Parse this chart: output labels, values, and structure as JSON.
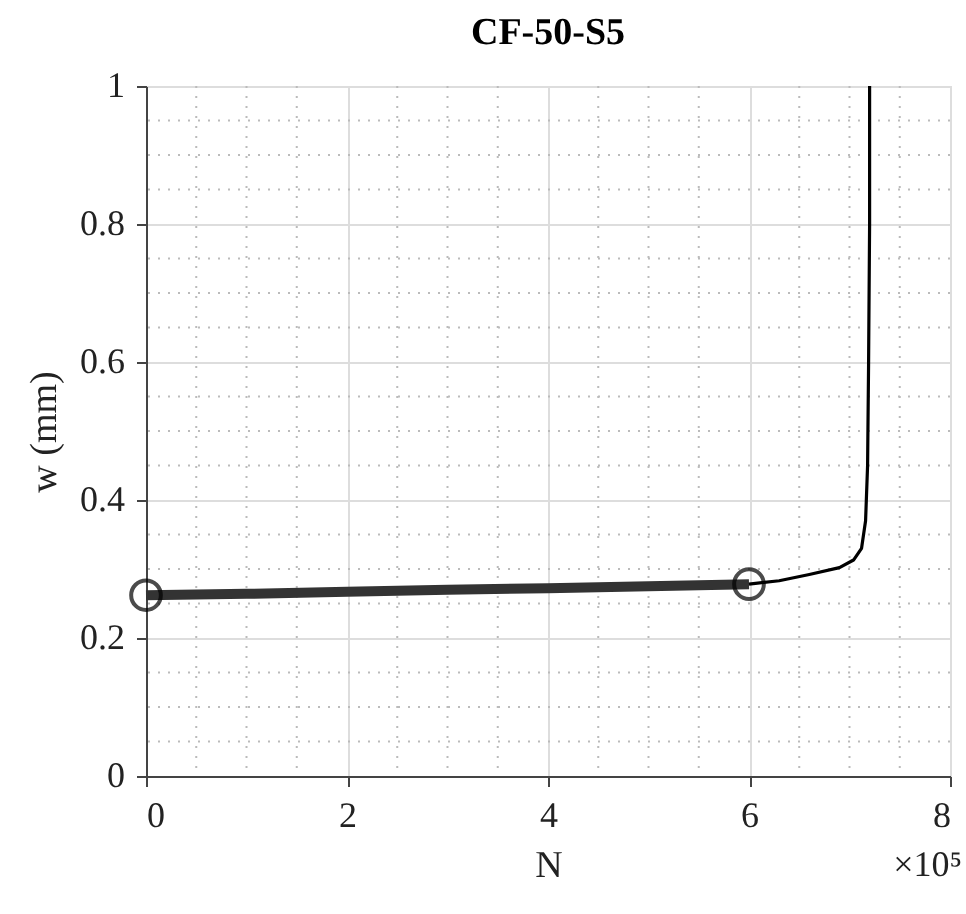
{
  "chart_data": {
    "type": "line",
    "title": "CF-50-S5",
    "xlabel": "N",
    "ylabel": "w (mm)",
    "xlim": [
      0,
      8
    ],
    "ylim": [
      0,
      1
    ],
    "xticks": [
      0,
      2,
      4,
      6,
      8
    ],
    "yticks": [
      0,
      0.2,
      0.4,
      0.6,
      0.8,
      1
    ],
    "annotations": [
      "×10⁵"
    ],
    "grid": true,
    "series": [
      {
        "color": "#333333",
        "x": [
          0,
          1,
          2,
          3,
          4,
          5,
          6
        ],
        "values": [
          0.262,
          0.264,
          0.267,
          0.27,
          0.272,
          0.275,
          0.278
        ]
      },
      {
        "color": "#000000",
        "x": [
          6,
          6.3,
          6.6,
          6.9,
          7.04,
          7.12,
          7.16,
          7.18,
          7.19,
          7.2,
          7.2
        ],
        "values": [
          0.278,
          0.283,
          0.292,
          0.302,
          0.313,
          0.33,
          0.37,
          0.45,
          0.6,
          0.8,
          1.0
        ]
      },
      {
        "type": "scatter",
        "marker": "circle",
        "color": "#000000",
        "x": [
          0,
          6
        ],
        "values": [
          0.262,
          0.278
        ]
      }
    ]
  }
}
